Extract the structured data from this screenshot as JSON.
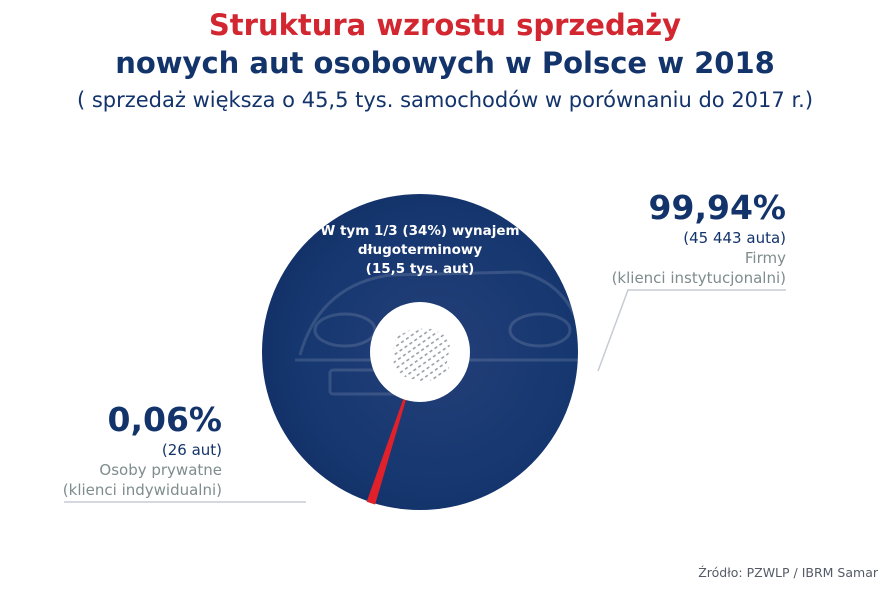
{
  "header": {
    "title_line1": "Struktura wzrostu sprzedaży",
    "title_line2": "nowych aut osobowych w Polsce w 2018",
    "subtitle": "( sprzedaż większa o 45,5 tys. samochodów w porównaniu do 2017 r.)"
  },
  "chart_data": {
    "type": "pie",
    "donut": true,
    "total_growth_units": 45469,
    "slices": [
      {
        "label": "Firmy",
        "sublabel": "(klienci instytucjonalni)",
        "percent_text": "99,94%",
        "count_text": "(45 443 auta)",
        "value": 99.94,
        "count": 45443,
        "color": "#13336b"
      },
      {
        "label": "Osoby prywatne",
        "sublabel": "(klienci indywidualni)",
        "percent_text": "0,06%",
        "count_text": "(26 aut)",
        "value": 0.06,
        "count": 26,
        "color": "#e0212b"
      }
    ],
    "inner_annotation": {
      "line1": "W tym 1/3 (34%) wynajem",
      "line2": "długoterminowy",
      "line3": "(15,5 tys. aut)"
    },
    "center_icon": "poland-map-icon",
    "legend": "none"
  },
  "source": "Źródło: PZWLP / IBRM Samar",
  "colors": {
    "title_red": "#d22630",
    "navy": "#13336b",
    "grey_text": "#7f8c8d",
    "red_slice": "#e0212b"
  }
}
